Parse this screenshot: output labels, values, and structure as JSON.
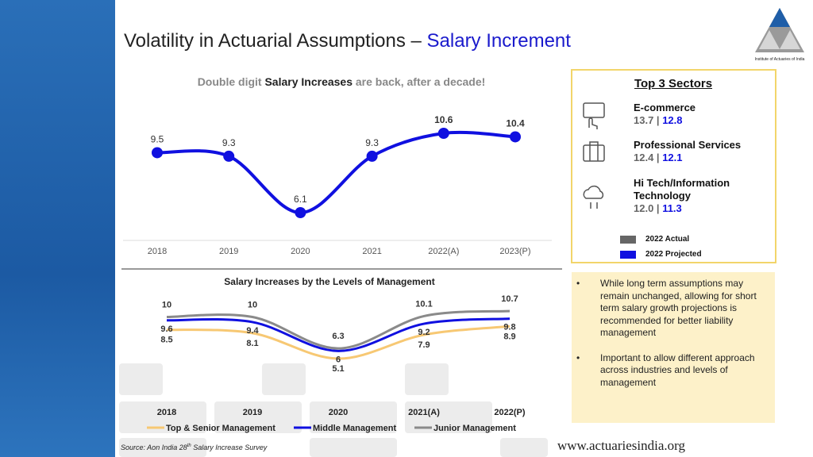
{
  "header": {
    "title_parts": [
      "Volatility in Actuarial Assumptions –",
      "Salary Increment"
    ],
    "logo_text": "Institute of Actuaries of India"
  },
  "chart_data": [
    {
      "type": "line",
      "title_parts": [
        "Double digit",
        "Salary Increases",
        "are back, after a decade!"
      ],
      "categories": [
        "2018",
        "2019",
        "2020",
        "2021",
        "2022(A)",
        "2023(P)"
      ],
      "values": [
        9.5,
        9.3,
        6.1,
        9.3,
        10.6,
        10.4
      ],
      "color": "#1010e0"
    },
    {
      "type": "line",
      "title": "Salary Increases by the Levels of Management",
      "categories": [
        "2018",
        "2019",
        "2020",
        "2021(A)",
        "2022(P)"
      ],
      "series": [
        {
          "name": "Top & Senior Management",
          "color": "#f7c873",
          "values": [
            8.5,
            8.1,
            5.1,
            7.9,
            8.9
          ]
        },
        {
          "name": "Middle Management",
          "color": "#1010e0",
          "values": [
            9.6,
            9.4,
            6.0,
            9.2,
            9.8
          ]
        },
        {
          "name": "Junior Management",
          "color": "#8a8a8a",
          "values": [
            10.0,
            10.0,
            6.3,
            10.1,
            10.7
          ]
        }
      ]
    }
  ],
  "sectors": {
    "title": "Top 3 Sectors",
    "items": [
      {
        "name": "E-commerce",
        "actual": "13.7",
        "projected": "12.8"
      },
      {
        "name": "Professional Services",
        "actual": "12.4",
        "projected": "12.1"
      },
      {
        "name": "Hi Tech/Information Technology",
        "actual": "12.0",
        "projected": "11.3"
      }
    ],
    "legend": [
      {
        "name": "2022 Actual",
        "color": "#666666"
      },
      {
        "name": "2022 Projected",
        "color": "#1010e0"
      }
    ]
  },
  "bullets": [
    "While long term assumptions may remain unchanged, allowing for short term salary growth projections is recommended for better liability management",
    "Important to allow different approach across industries and levels of management"
  ],
  "footer": {
    "source_parts": [
      "Source: Aon India 28",
      "th",
      "Salary Increase Survey"
    ],
    "website": "www.actuariesindia.org"
  }
}
